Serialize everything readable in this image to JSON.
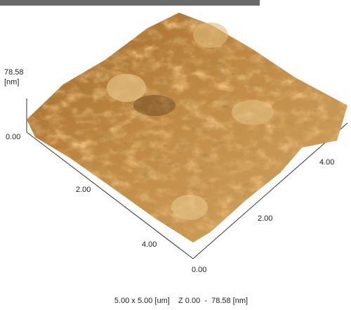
{
  "z_axis": {
    "max_label": "78.58",
    "unit": "[nm]",
    "min_label": "0.00"
  },
  "left_axis": {
    "ticks": [
      "2.00",
      "4.00"
    ]
  },
  "right_axis": {
    "ticks": [
      "0.00",
      "2.00",
      "4.00"
    ]
  },
  "caption": "5.00 x 5.00 [um]    Z 0.00  -  78.58 [nm]"
}
